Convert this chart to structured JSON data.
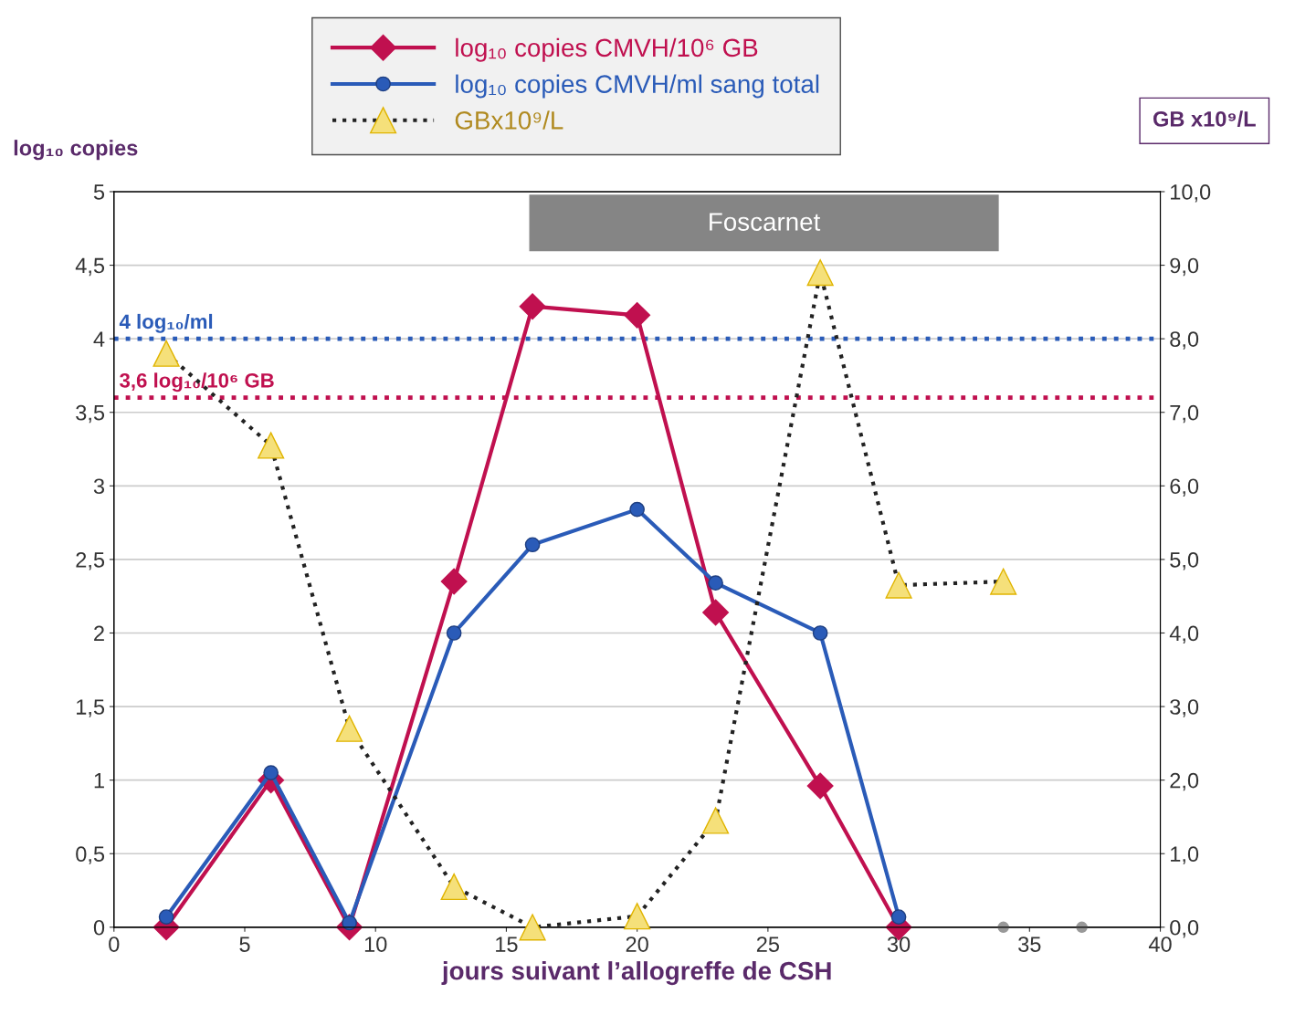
{
  "chart_data": {
    "type": "line",
    "xlabel": "jours suivant l’allogreffe de CSH",
    "ylabel": "log₁₀ copies",
    "y2label": "GB x10⁹/L",
    "xlim": [
      0,
      40
    ],
    "xticks": [
      0,
      5,
      10,
      15,
      20,
      25,
      30,
      35,
      40
    ],
    "ylim": [
      0,
      5
    ],
    "yticks": [
      0,
      {
        "value": 0.5,
        "label": "0,5"
      },
      1,
      {
        "value": 1.5,
        "label": "1,5"
      },
      2,
      {
        "value": 2.5,
        "label": "2,5"
      },
      3,
      {
        "value": 3.5,
        "label": "3,5"
      },
      4,
      {
        "value": 4.5,
        "label": "4,5"
      },
      5
    ],
    "y2lim": [
      0,
      10
    ],
    "y2ticks": [
      {
        "value": 0,
        "label": "0,0"
      },
      {
        "value": 1,
        "label": "1,0"
      },
      {
        "value": 2,
        "label": "2,0"
      },
      {
        "value": 3,
        "label": "3,0"
      },
      {
        "value": 4,
        "label": "4,0"
      },
      {
        "value": 5,
        "label": "5,0"
      },
      {
        "value": 6,
        "label": "6,0"
      },
      {
        "value": 7,
        "label": "7,0"
      },
      {
        "value": 8,
        "label": "8,0"
      },
      {
        "value": 9,
        "label": "9,0"
      },
      {
        "value": 10,
        "label": "10,0"
      }
    ],
    "grid": "y",
    "legend": "top",
    "series": [
      {
        "name": "log₁₀ copies CMVH/10⁶ GB",
        "color": "#c0104f",
        "marker": "diamond",
        "line_style": "solid",
        "x": [
          2,
          6,
          9,
          13,
          16,
          20,
          23,
          27,
          30
        ],
        "values": [
          0,
          1.0,
          0,
          2.35,
          4.22,
          4.16,
          2.14,
          0.96,
          0
        ]
      },
      {
        "name": "log₁₀ copies CMVH/ml sang total",
        "color": "#2a5bb8",
        "marker": "circle",
        "line_style": "solid",
        "x": [
          2,
          6,
          9,
          13,
          16,
          20,
          23,
          27,
          30
        ],
        "values": [
          0.07,
          1.05,
          0.03,
          2.0,
          2.6,
          2.84,
          2.34,
          2.0,
          0.07
        ]
      },
      {
        "name": "GBx10⁹/L",
        "color": "#f5e07a",
        "marker": "triangle",
        "line_style": "dotted",
        "axis": "y2",
        "x": [
          2,
          6,
          9,
          13,
          16,
          20,
          23,
          27,
          30,
          34
        ],
        "values": [
          7.8,
          6.55,
          2.7,
          0.55,
          0,
          0.15,
          1.45,
          8.9,
          4.65,
          4.7
        ]
      },
      {
        "type": "scatter",
        "color": "#999999",
        "marker": "circle",
        "x": [
          34,
          37
        ],
        "values": [
          0,
          0
        ]
      }
    ],
    "ref_lines": [
      {
        "axis": "y",
        "value": 4,
        "label": "4 log₁₀/ml",
        "color": "#2a5bb8",
        "line_style": "dotted"
      },
      {
        "axis": "y",
        "value": 3.6,
        "label": "3,6 log₁₀/10⁶ GB",
        "color": "#c0104f",
        "line_style": "dotted"
      }
    ],
    "bands": [
      {
        "axis": "x",
        "from": 15.9,
        "to": 33.8,
        "label": "Foscarnet",
        "color": "#858585"
      }
    ]
  }
}
